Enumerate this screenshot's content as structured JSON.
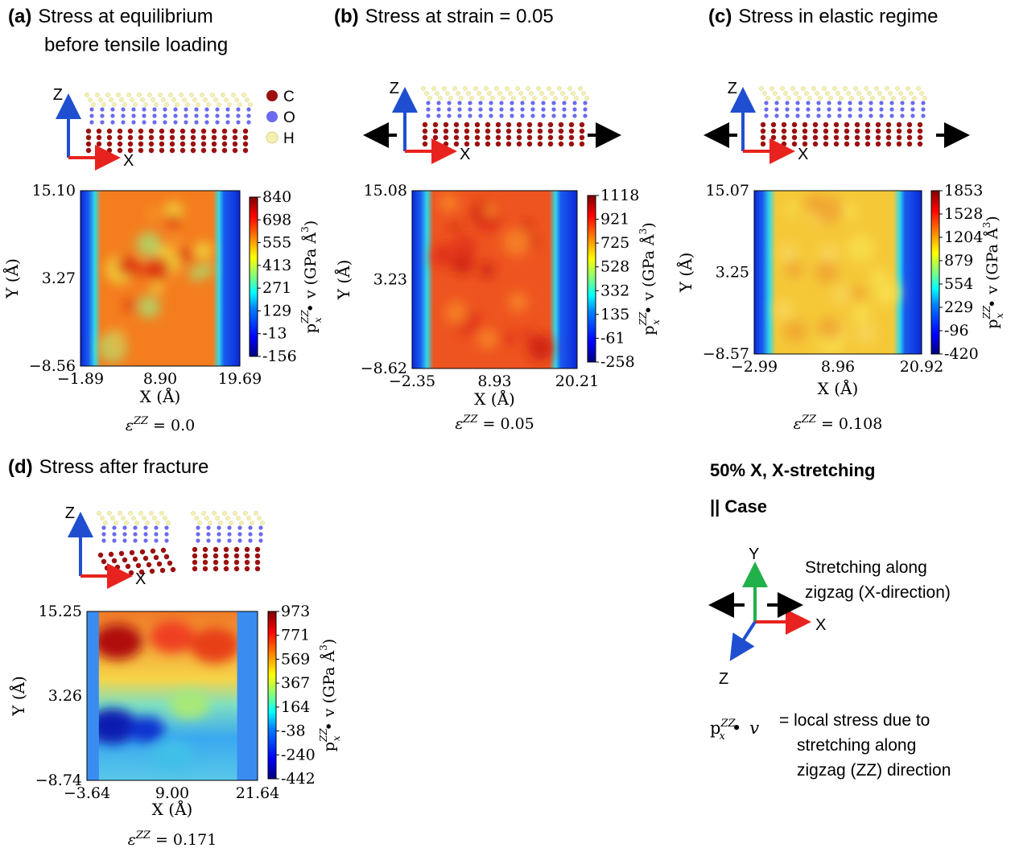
{
  "panels": [
    {
      "label": "(a)",
      "title": [
        "Stress at equilibrium",
        "before tensile loading"
      ],
      "yticks": [
        "15.10",
        "3.27",
        "−8.56"
      ],
      "xticks": [
        "−1.89",
        "8.90",
        "19.69"
      ],
      "cbticks": [
        "840",
        "698",
        "555",
        "413",
        "271",
        "129",
        "-13",
        "-156"
      ],
      "strain": "= 0.0"
    },
    {
      "label": "(b)",
      "title": [
        "Stress at strain = 0.05"
      ],
      "yticks": [
        "15.08",
        "3.23",
        "−8.62"
      ],
      "xticks": [
        "−2.35",
        "8.93",
        "20.21"
      ],
      "cbticks": [
        "1118",
        "921",
        "725",
        "528",
        "332",
        "135",
        "-61",
        "-258"
      ],
      "strain": "= 0.05"
    },
    {
      "label": "(c)",
      "title": [
        "Stress in elastic regime"
      ],
      "yticks": [
        "15.07",
        "3.25",
        "−8.57"
      ],
      "xticks": [
        "−2.99",
        "8.96",
        "20.92"
      ],
      "cbticks": [
        "1853",
        "1528",
        "1204",
        "879",
        "554",
        "229",
        "-96",
        "-420"
      ],
      "strain": "= 0.108"
    },
    {
      "label": "(d)",
      "title": [
        "Stress after fracture"
      ],
      "yticks": [
        "15.25",
        "3.26",
        "−8.74"
      ],
      "xticks": [
        "−3.64",
        "9.00",
        "21.64"
      ],
      "cbticks": [
        "973",
        "771",
        "569",
        "367",
        "164",
        "-38",
        "-240",
        "-442"
      ],
      "strain": "= 0.171"
    }
  ],
  "axis_labels": {
    "x": "X (Å)",
    "y": "Y (Å)",
    "z": "Z"
  },
  "atoms": [
    "C",
    "O",
    "H"
  ],
  "colorbar_label": {
    "symbol": "p",
    "sub": "x",
    "sup": "ZZ",
    "rest": " • v (GPa Å",
    "exp": "3",
    "close": ")"
  },
  "strain_symbol": {
    "symbol": "ε",
    "sup": "ZZ"
  },
  "case": {
    "heading": "50% X, X-stretching",
    "subheading": "|| Case",
    "axes": [
      "Y",
      "X",
      "Z"
    ],
    "stretch": [
      "Stretching along",
      "zigzag (X-direction)"
    ]
  },
  "note": {
    "symbol": "p",
    "sub": "x",
    "sup": "ZZ",
    "dot": "•",
    "var": "v",
    "lines": [
      "= local stress due to",
      "stretching along",
      "zigzag (ZZ) direction"
    ]
  }
}
